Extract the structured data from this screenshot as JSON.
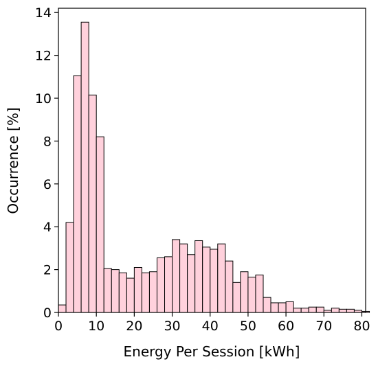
{
  "chart_data": {
    "type": "bar",
    "title": "",
    "xlabel": "Energy Per Session [kWh]",
    "ylabel": "Occurrence [%]",
    "xlim": [
      0,
      81
    ],
    "ylim": [
      0,
      14.2
    ],
    "bin_width": 2,
    "bin_starts": [
      0,
      2,
      4,
      6,
      8,
      10,
      12,
      14,
      16,
      18,
      20,
      22,
      24,
      26,
      28,
      30,
      32,
      34,
      36,
      38,
      40,
      42,
      44,
      46,
      48,
      50,
      52,
      54,
      56,
      58,
      60,
      62,
      64,
      66,
      68,
      70,
      72,
      74,
      76,
      78,
      80
    ],
    "values": [
      0.35,
      4.2,
      11.05,
      13.55,
      10.15,
      8.2,
      2.05,
      2.0,
      1.85,
      1.6,
      2.1,
      1.85,
      1.9,
      2.55,
      2.6,
      3.4,
      3.2,
      2.7,
      3.35,
      3.05,
      2.95,
      3.2,
      2.4,
      1.4,
      1.9,
      1.65,
      1.75,
      0.7,
      0.45,
      0.45,
      0.5,
      0.2,
      0.2,
      0.25,
      0.25,
      0.1,
      0.2,
      0.15,
      0.15,
      0.1,
      0.05
    ],
    "x_ticks": [
      "0",
      "10",
      "20",
      "30",
      "40",
      "50",
      "60",
      "70",
      "80"
    ],
    "y_ticks": [
      "0",
      "2",
      "4",
      "6",
      "8",
      "10",
      "12",
      "14"
    ],
    "bar_color": "#ffd1dc",
    "edge_color": "#000000",
    "grid": false,
    "legend": "none"
  }
}
